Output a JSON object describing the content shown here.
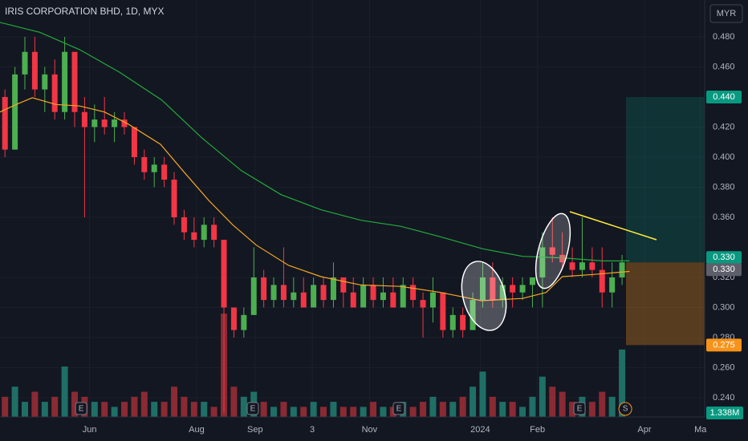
{
  "chart_data": {
    "type": "candlestick",
    "title": "IRIS CORPORATION BHD, 1D, MYX",
    "currency": "MYR",
    "up_color": "#4caf50",
    "down_color": "#f23645",
    "xlim": [
      0,
      283.2
    ],
    "ylim": [
      0.2272,
      0.5045
    ],
    "xticks": [
      {
        "value": 36,
        "label": "Jun"
      },
      {
        "value": 79,
        "label": "Aug"
      },
      {
        "value": 102.5,
        "label": "Sep"
      },
      {
        "value": 125.5,
        "label": "3"
      },
      {
        "value": 148.5,
        "label": "Nov"
      },
      {
        "value": 193,
        "label": "2024"
      },
      {
        "value": 216,
        "label": "Feb"
      },
      {
        "value": 259,
        "label": "Apr"
      },
      {
        "value": 281.5,
        "label": "Ma"
      }
    ],
    "yticks": [
      {
        "value": 0.48,
        "label": "0.480"
      },
      {
        "value": 0.46,
        "label": "0.460"
      },
      {
        "value": 0.42,
        "label": "0.420"
      },
      {
        "value": 0.4,
        "label": "0.400"
      },
      {
        "value": 0.38,
        "label": "0.380"
      },
      {
        "value": 0.36,
        "label": "0.360"
      },
      {
        "value": 0.32,
        "label": "0.320"
      },
      {
        "value": 0.3,
        "label": "0.300"
      },
      {
        "value": 0.28,
        "label": "0.280"
      },
      {
        "value": 0.26,
        "label": "0.260"
      },
      {
        "value": 0.24,
        "label": "0.240"
      }
    ],
    "candles": {
      "x": [
        2,
        6,
        10,
        14,
        18,
        22,
        26,
        30,
        34,
        38,
        42,
        46,
        50,
        54,
        58,
        62,
        66,
        70,
        74,
        78,
        82,
        86,
        90,
        94,
        98,
        102,
        106,
        110,
        114,
        118,
        122,
        126,
        130,
        134,
        138,
        142,
        146,
        150,
        154,
        158,
        162,
        166,
        170,
        174,
        178,
        182,
        186,
        190,
        194,
        198,
        202,
        206,
        210,
        214,
        218,
        222,
        226,
        230,
        234,
        238,
        242,
        246,
        250
      ],
      "open": [
        0.44,
        0.405,
        0.455,
        0.47,
        0.445,
        0.455,
        0.43,
        0.47,
        0.43,
        0.42,
        0.425,
        0.42,
        0.425,
        0.42,
        0.4,
        0.39,
        0.395,
        0.385,
        0.36,
        0.35,
        0.345,
        0.355,
        0.345,
        0.3,
        0.285,
        0.295,
        0.32,
        0.305,
        0.315,
        0.305,
        0.31,
        0.3,
        0.315,
        0.305,
        0.32,
        0.31,
        0.3,
        0.315,
        0.305,
        0.31,
        0.3,
        0.315,
        0.305,
        0.3,
        0.31,
        0.285,
        0.295,
        0.285,
        0.305,
        0.32,
        0.305,
        0.315,
        0.31,
        0.315,
        0.32,
        0.34,
        0.335,
        0.33,
        0.325,
        0.33,
        0.325,
        0.31,
        0.32
      ],
      "high": [
        0.445,
        0.46,
        0.48,
        0.48,
        0.46,
        0.465,
        0.48,
        0.47,
        0.44,
        0.435,
        0.44,
        0.43,
        0.43,
        0.42,
        0.405,
        0.4,
        0.4,
        0.39,
        0.365,
        0.36,
        0.36,
        0.36,
        0.345,
        0.3,
        0.3,
        0.34,
        0.325,
        0.32,
        0.34,
        0.32,
        0.32,
        0.32,
        0.32,
        0.33,
        0.32,
        0.32,
        0.32,
        0.32,
        0.32,
        0.32,
        0.32,
        0.32,
        0.31,
        0.32,
        0.31,
        0.3,
        0.3,
        0.31,
        0.33,
        0.33,
        0.32,
        0.32,
        0.32,
        0.32,
        0.35,
        0.36,
        0.35,
        0.34,
        0.36,
        0.34,
        0.34,
        0.33,
        0.335
      ],
      "low": [
        0.4,
        0.405,
        0.445,
        0.44,
        0.43,
        0.425,
        0.425,
        0.42,
        0.36,
        0.41,
        0.415,
        0.41,
        0.415,
        0.395,
        0.385,
        0.38,
        0.38,
        0.355,
        0.345,
        0.34,
        0.34,
        0.34,
        0.23,
        0.28,
        0.28,
        0.295,
        0.3,
        0.3,
        0.3,
        0.3,
        0.3,
        0.3,
        0.3,
        0.3,
        0.3,
        0.3,
        0.3,
        0.3,
        0.3,
        0.3,
        0.3,
        0.3,
        0.28,
        0.29,
        0.28,
        0.28,
        0.28,
        0.285,
        0.3,
        0.3,
        0.3,
        0.3,
        0.305,
        0.3,
        0.3,
        0.33,
        0.325,
        0.32,
        0.32,
        0.32,
        0.3,
        0.3,
        0.315
      ],
      "close": [
        0.405,
        0.455,
        0.47,
        0.445,
        0.455,
        0.43,
        0.47,
        0.43,
        0.42,
        0.425,
        0.42,
        0.425,
        0.42,
        0.4,
        0.39,
        0.395,
        0.385,
        0.36,
        0.35,
        0.345,
        0.355,
        0.345,
        0.3,
        0.285,
        0.295,
        0.32,
        0.305,
        0.315,
        0.305,
        0.31,
        0.3,
        0.315,
        0.305,
        0.32,
        0.31,
        0.3,
        0.315,
        0.305,
        0.31,
        0.3,
        0.315,
        0.305,
        0.3,
        0.31,
        0.285,
        0.295,
        0.285,
        0.305,
        0.32,
        0.305,
        0.315,
        0.31,
        0.315,
        0.32,
        0.34,
        0.335,
        0.33,
        0.325,
        0.33,
        0.325,
        0.31,
        0.32,
        0.33
      ]
    },
    "moving_averages": [
      {
        "color": "#22ab3a",
        "x": [
          0,
          16,
          32,
          48,
          65,
          81,
          97,
          113,
          129,
          145,
          161,
          177,
          194,
          210,
          226,
          242,
          253
        ],
        "values": [
          0.4896,
          0.483,
          0.4715,
          0.4565,
          0.438,
          0.413,
          0.391,
          0.375,
          0.365,
          0.358,
          0.354,
          0.347,
          0.339,
          0.334,
          0.333,
          0.331,
          0.331
        ]
      },
      {
        "color": "#f5a623",
        "x": [
          0,
          6.5,
          13,
          22.5,
          32,
          42,
          51.5,
          64.5,
          74,
          84,
          93.5,
          103,
          116,
          129,
          145,
          161,
          177,
          193.5,
          210,
          219.5,
          226,
          239,
          253
        ],
        "values": [
          0.43,
          0.435,
          0.4395,
          0.435,
          0.434,
          0.43,
          0.422,
          0.4085,
          0.39,
          0.371,
          0.355,
          0.3415,
          0.328,
          0.3205,
          0.315,
          0.314,
          0.31,
          0.3045,
          0.306,
          0.31,
          0.3205,
          0.322,
          0.324
        ]
      }
    ],
    "volume": {
      "ylim": [
        0,
        3.5
      ],
      "up_color": "#1f6f66",
      "down_color": "#8a2a33",
      "values": [
        0.4,
        0.6,
        0.3,
        0.5,
        0.3,
        0.4,
        1.0,
        0.5,
        0.4,
        0.3,
        0.3,
        0.2,
        0.3,
        0.4,
        0.5,
        0.3,
        0.3,
        0.6,
        0.4,
        0.3,
        0.3,
        0.2,
        2.05,
        0.6,
        0.4,
        0.5,
        0.3,
        0.2,
        0.3,
        0.2,
        0.2,
        0.3,
        0.2,
        0.3,
        0.2,
        0.2,
        0.2,
        0.3,
        0.2,
        0.2,
        0.3,
        0.2,
        0.3,
        0.4,
        0.3,
        0.3,
        0.4,
        0.6,
        0.9,
        0.4,
        0.3,
        0.3,
        0.2,
        0.4,
        0.8,
        0.6,
        0.5,
        0.3,
        0.4,
        0.3,
        0.5,
        0.4,
        1.338
      ],
      "last_label": "1.338M"
    },
    "price_levels": [
      {
        "value": 0.44,
        "label": "0.440",
        "color": "#089981"
      },
      {
        "value": 0.33,
        "label": "0.330",
        "color": "#089981"
      },
      {
        "value": 0.33,
        "label": "0.330",
        "color": "#5d606b"
      },
      {
        "value": 0.275,
        "label": "0.275",
        "color": "#f7931a"
      }
    ],
    "events": [
      {
        "x": 32.6,
        "label": "E"
      },
      {
        "x": 101.6,
        "label": "E"
      },
      {
        "x": 160.3,
        "label": "E"
      },
      {
        "x": 232.9,
        "label": "E"
      },
      {
        "x": 251.3,
        "label": "S"
      }
    ]
  }
}
